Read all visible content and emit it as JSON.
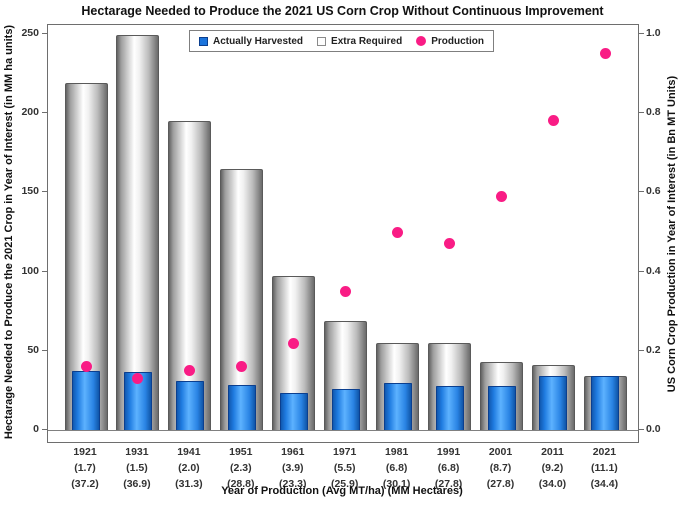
{
  "title": "Hectarage Needed to Produce the 2021 US Corn Crop Without Continuous Improvement",
  "legend": {
    "items": [
      {
        "label": "Actually Harvested",
        "marker": "blue-square"
      },
      {
        "label": "Extra Required",
        "marker": "white-square"
      },
      {
        "label": "Production",
        "marker": "pink-circle"
      }
    ]
  },
  "axes": {
    "left": {
      "label": "Hectarage Needed to Produce the 2021 Crop in Year of Interest (in MM ha units)",
      "ticks": [
        "0",
        "50",
        "100",
        "150",
        "200",
        "250"
      ],
      "tick_values": [
        0,
        50,
        100,
        150,
        200,
        250
      ]
    },
    "right": {
      "label": "US Corn Crop Production in Year of Interest (in Bn MT Units)",
      "ticks": [
        "0.0",
        "0.2",
        "0.4",
        "0.6",
        "0.8",
        "1.0"
      ],
      "tick_values": [
        0.0,
        0.2,
        0.4,
        0.6,
        0.8,
        1.0
      ]
    },
    "x": {
      "label": "Year of Production (Avg MT/ha) (MM Hectares)"
    }
  },
  "chart_data": {
    "type": "bar",
    "subtype": "overlapped bars (blue in front of gray) with scatter overlay on secondary axis",
    "title": "Hectarage Needed to Produce the 2021 US Corn Crop Without Continuous Improvement",
    "xlabel": "Year of Production (Avg MT/ha) (MM Hectares)",
    "ylabel_left": "Hectarage Needed to Produce the 2021 Crop in Year of Interest (in MM ha units)",
    "ylabel_right": "US Corn Crop Production in Year of Interest (in Bn MT Units)",
    "categories": [
      "1921",
      "1931",
      "1941",
      "1951",
      "1961",
      "1971",
      "1981",
      "1991",
      "2001",
      "2011",
      "2021"
    ],
    "avg_mt_per_ha_labels": [
      "(1.7)",
      "(1.5)",
      "(2.0)",
      "(2.3)",
      "(3.9)",
      "(5.5)",
      "(6.8)",
      "(6.8)",
      "(8.7)",
      "(9.2)",
      "(11.1)"
    ],
    "mm_hectares_labels": [
      "(37.2)",
      "(36.9)",
      "(31.3)",
      "(28.8)",
      "(23.3)",
      "(25.9)",
      "(30.1)",
      "(27.8)",
      "(27.8)",
      "(34.0)",
      "(34.4)"
    ],
    "series": [
      {
        "name": "Actually Harvested",
        "type": "bar",
        "axis": "left",
        "values": [
          37.2,
          36.9,
          31.3,
          28.8,
          23.3,
          25.9,
          30.1,
          27.8,
          27.8,
          34.0,
          34.4
        ]
      },
      {
        "name": "Extra Required",
        "type": "bar",
        "axis": "left",
        "total_hectarage_needed": [
          219,
          249,
          195,
          165,
          97,
          69,
          55,
          55,
          43,
          41,
          34.4
        ],
        "extra_values": [
          181.8,
          212.1,
          163.7,
          136.2,
          73.7,
          43.1,
          24.9,
          27.2,
          15.2,
          7.0,
          0
        ]
      },
      {
        "name": "Production",
        "type": "scatter",
        "axis": "right",
        "values": [
          0.16,
          0.13,
          0.15,
          0.16,
          0.22,
          0.35,
          0.5,
          0.47,
          0.59,
          0.78,
          0.95
        ]
      }
    ],
    "ylim_left": [
      0,
      250
    ],
    "ylim_right": [
      0,
      1.0
    ],
    "grid": false,
    "legend_position": "top-center-inside"
  },
  "colors": {
    "harvested_blue": "#1B74DC",
    "harvested_blue_dark": "#0B3F8F",
    "extra_gray_light": "#F5F5F5",
    "extra_gray_dark": "#6B6B6B",
    "production_pink": "#F91C85",
    "axis_gray": "#6E6E6E",
    "text_dark": "#262626"
  }
}
